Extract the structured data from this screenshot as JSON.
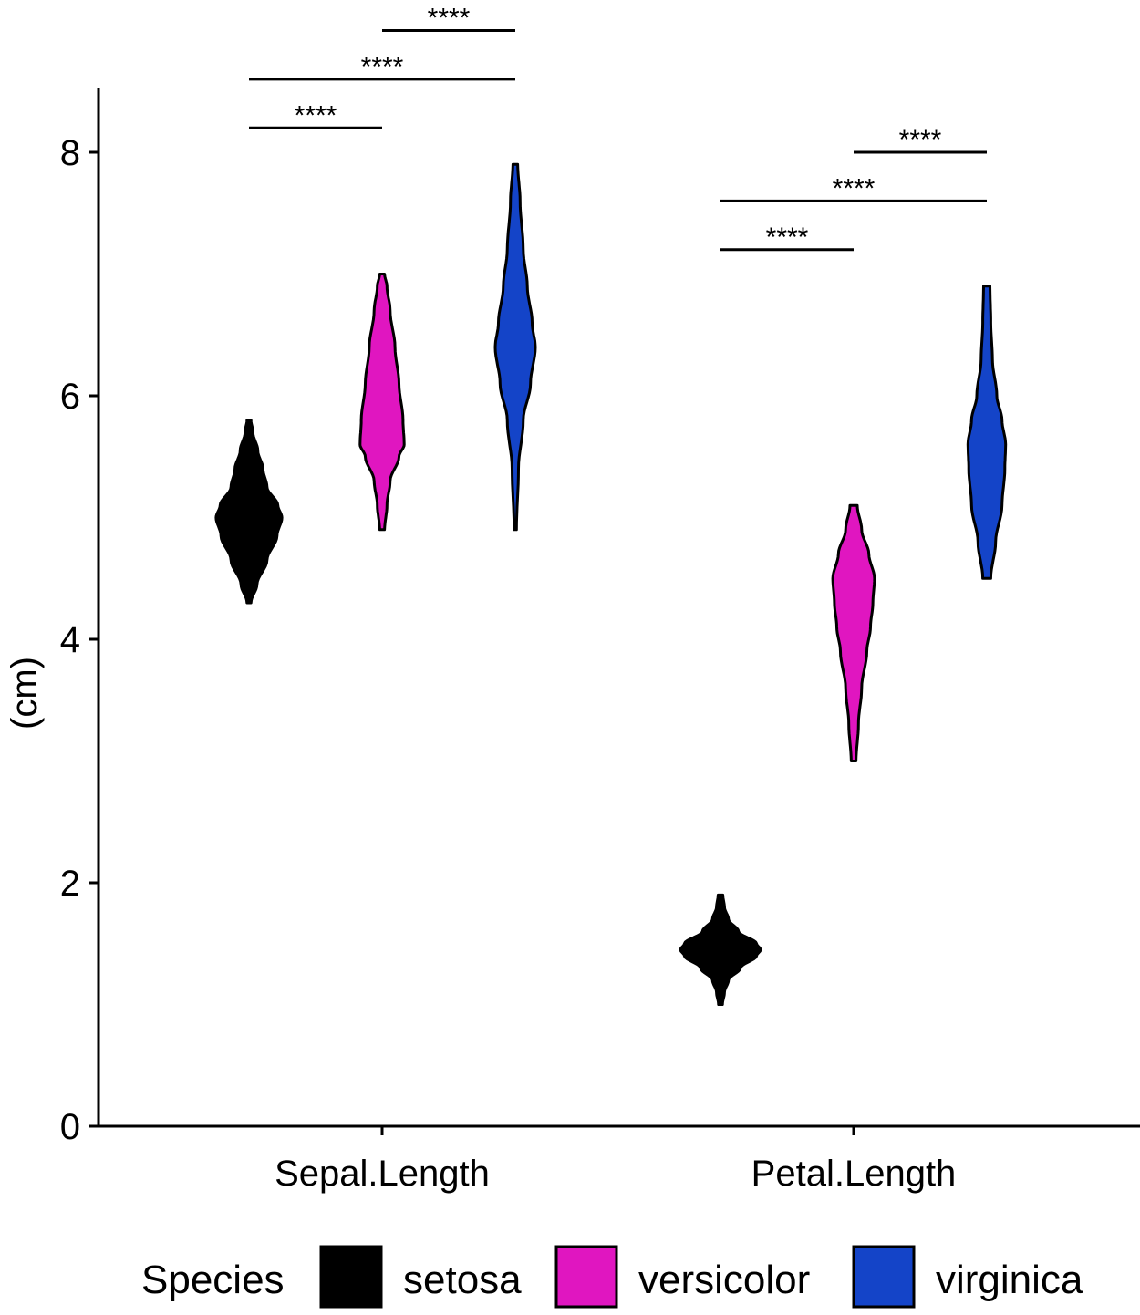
{
  "chart_data": {
    "type": "violin",
    "title": "",
    "xlabel": "",
    "ylabel": "(cm)",
    "ylim": [
      0,
      8.6
    ],
    "yticks": [
      0,
      2,
      4,
      6,
      8
    ],
    "categories": [
      "Sepal.Length",
      "Petal.Length"
    ],
    "series": [
      {
        "name": "setosa",
        "color": "#000000",
        "groups": [
          {
            "category": "Sepal.Length",
            "min": 4.3,
            "max": 5.8,
            "profile": [
              [
                4.3,
                0.05
              ],
              [
                4.45,
                0.2
              ],
              [
                4.65,
                0.45
              ],
              [
                4.85,
                0.7
              ],
              [
                5.0,
                0.82
              ],
              [
                5.1,
                0.72
              ],
              [
                5.25,
                0.45
              ],
              [
                5.4,
                0.35
              ],
              [
                5.55,
                0.22
              ],
              [
                5.7,
                0.1
              ],
              [
                5.8,
                0.05
              ]
            ]
          },
          {
            "category": "Petal.Length",
            "min": 1.0,
            "max": 1.9,
            "profile": [
              [
                1.0,
                0.05
              ],
              [
                1.1,
                0.1
              ],
              [
                1.2,
                0.2
              ],
              [
                1.3,
                0.5
              ],
              [
                1.4,
                0.9
              ],
              [
                1.45,
                1.0
              ],
              [
                1.5,
                0.9
              ],
              [
                1.6,
                0.45
              ],
              [
                1.7,
                0.2
              ],
              [
                1.8,
                0.1
              ],
              [
                1.9,
                0.06
              ]
            ]
          }
        ]
      },
      {
        "name": "versicolor",
        "color": "#e016c0",
        "groups": [
          {
            "category": "Sepal.Length",
            "min": 4.9,
            "max": 7.0,
            "profile": [
              [
                4.9,
                0.06
              ],
              [
                5.1,
                0.12
              ],
              [
                5.3,
                0.2
              ],
              [
                5.5,
                0.42
              ],
              [
                5.6,
                0.55
              ],
              [
                5.8,
                0.52
              ],
              [
                6.1,
                0.42
              ],
              [
                6.4,
                0.32
              ],
              [
                6.7,
                0.2
              ],
              [
                6.9,
                0.12
              ],
              [
                7.0,
                0.06
              ]
            ]
          },
          {
            "category": "Petal.Length",
            "min": 3.0,
            "max": 5.1,
            "profile": [
              [
                3.0,
                0.06
              ],
              [
                3.3,
                0.12
              ],
              [
                3.6,
                0.2
              ],
              [
                3.9,
                0.33
              ],
              [
                4.1,
                0.42
              ],
              [
                4.3,
                0.48
              ],
              [
                4.5,
                0.52
              ],
              [
                4.7,
                0.38
              ],
              [
                4.9,
                0.2
              ],
              [
                5.1,
                0.09
              ]
            ]
          }
        ]
      },
      {
        "name": "virginica",
        "color": "#1444c8",
        "groups": [
          {
            "category": "Sepal.Length",
            "min": 4.9,
            "max": 7.9,
            "profile": [
              [
                4.9,
                0.03
              ],
              [
                5.4,
                0.08
              ],
              [
                5.8,
                0.2
              ],
              [
                6.1,
                0.38
              ],
              [
                6.4,
                0.5
              ],
              [
                6.6,
                0.42
              ],
              [
                6.9,
                0.3
              ],
              [
                7.2,
                0.2
              ],
              [
                7.6,
                0.12
              ],
              [
                7.9,
                0.06
              ]
            ]
          },
          {
            "category": "Petal.Length",
            "min": 4.5,
            "max": 6.9,
            "profile": [
              [
                4.5,
                0.1
              ],
              [
                4.8,
                0.22
              ],
              [
                5.1,
                0.38
              ],
              [
                5.4,
                0.45
              ],
              [
                5.6,
                0.47
              ],
              [
                5.8,
                0.38
              ],
              [
                6.0,
                0.25
              ],
              [
                6.3,
                0.14
              ],
              [
                6.6,
                0.1
              ],
              [
                6.9,
                0.08
              ]
            ]
          }
        ]
      }
    ],
    "significance": [
      {
        "category": "Sepal.Length",
        "from": "setosa",
        "to": "versicolor",
        "y": 8.2,
        "label": "****"
      },
      {
        "category": "Sepal.Length",
        "from": "setosa",
        "to": "virginica",
        "y": 8.6,
        "label": "****"
      },
      {
        "category": "Sepal.Length",
        "from": "versicolor",
        "to": "virginica",
        "y": 9.0,
        "label": "****"
      },
      {
        "category": "Petal.Length",
        "from": "setosa",
        "to": "versicolor",
        "y": 7.2,
        "label": "****"
      },
      {
        "category": "Petal.Length",
        "from": "setosa",
        "to": "virginica",
        "y": 7.6,
        "label": "****"
      },
      {
        "category": "Petal.Length",
        "from": "versicolor",
        "to": "virginica",
        "y": 8.0,
        "label": "****"
      }
    ],
    "legend": {
      "title": "Species",
      "position": "bottom",
      "entries": [
        "setosa",
        "versicolor",
        "virginica"
      ]
    }
  }
}
